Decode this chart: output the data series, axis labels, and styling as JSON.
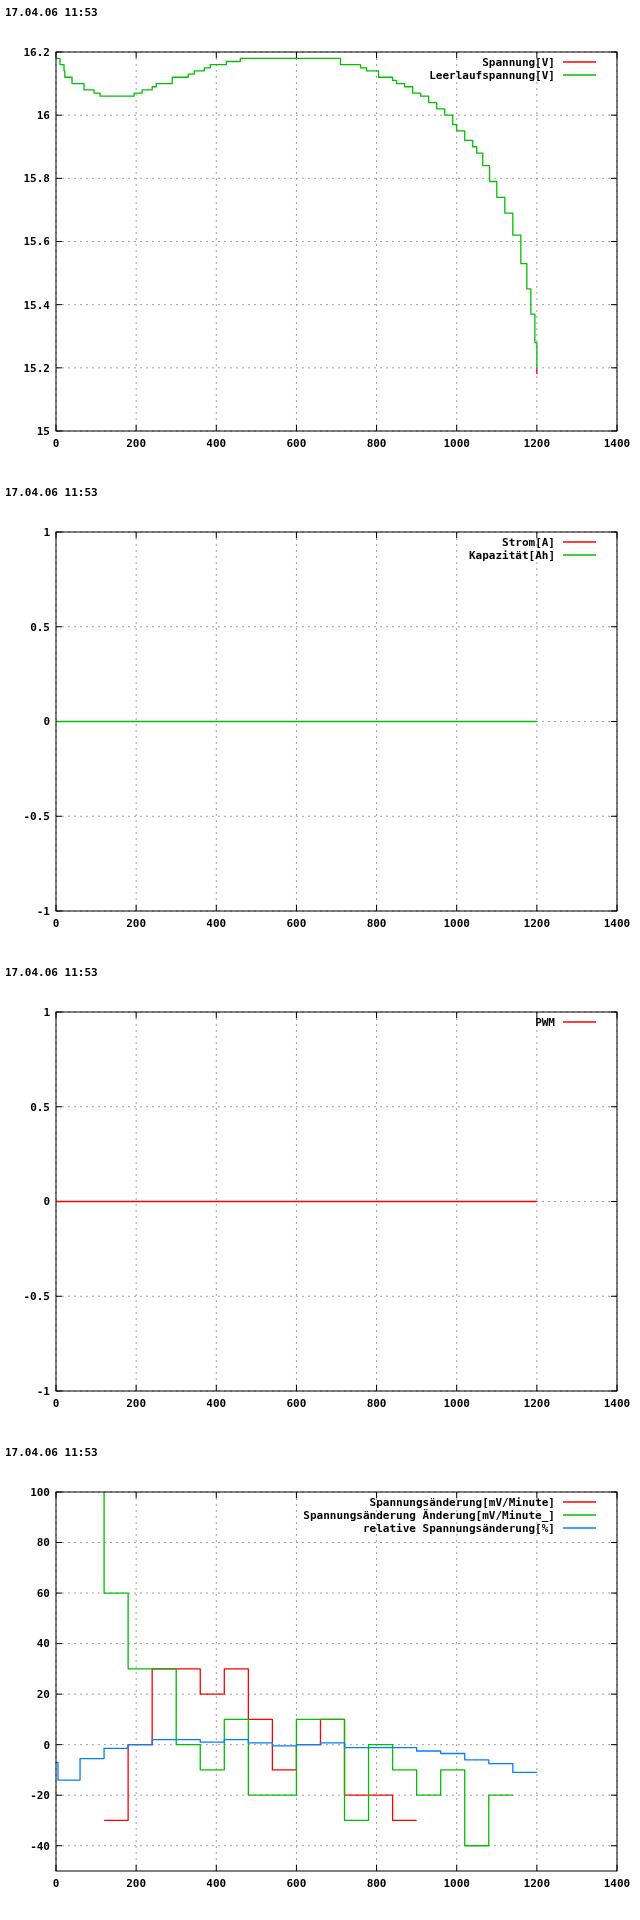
{
  "chart_data": [
    {
      "type": "step",
      "title": "17.04.06 11:53",
      "xlim": [
        0,
        1400
      ],
      "xticks": [
        0,
        200,
        400,
        600,
        800,
        1000,
        1200,
        1400
      ],
      "ylim": [
        15,
        16.2
      ],
      "yticks": [
        15,
        {
          "value": 15.2,
          "label": "15.2"
        },
        {
          "value": 15.4,
          "label": "15.4"
        },
        {
          "value": 15.6,
          "label": "15.6"
        },
        {
          "value": 15.8,
          "label": "15.8"
        },
        16,
        {
          "value": 16.2,
          "label": "16.2"
        }
      ],
      "grid": true,
      "legend": "top right",
      "series": [
        {
          "name": "Spannung[V]",
          "color": "#ff0000",
          "x": [
            1200,
            1200
          ],
          "values": [
            15.2,
            15.18
          ]
        },
        {
          "name": "Leerlaufspannung[V]",
          "color": "#00c000",
          "x": [
            0,
            10,
            20,
            22,
            40,
            70,
            95,
            110,
            195,
            215,
            240,
            250,
            290,
            330,
            345,
            370,
            385,
            425,
            460,
            710,
            760,
            775,
            805,
            840,
            850,
            870,
            890,
            910,
            930,
            950,
            970,
            990,
            1000,
            1020,
            1040,
            1050,
            1065,
            1082,
            1100,
            1120,
            1140,
            1160,
            1175,
            1185,
            1195,
            1200
          ],
          "values": [
            16.18,
            16.16,
            16.14,
            16.12,
            16.1,
            16.08,
            16.07,
            16.06,
            16.07,
            16.08,
            16.09,
            16.1,
            16.12,
            16.13,
            16.14,
            16.15,
            16.16,
            16.17,
            16.18,
            16.16,
            16.15,
            16.14,
            16.12,
            16.11,
            16.1,
            16.09,
            16.07,
            16.06,
            16.04,
            16.02,
            16,
            15.97,
            15.95,
            15.92,
            15.9,
            15.88,
            15.84,
            15.79,
            15.74,
            15.69,
            15.62,
            15.53,
            15.45,
            15.37,
            15.28,
            15.2
          ]
        }
      ]
    },
    {
      "type": "line",
      "title": "17.04.06 11:53",
      "xlim": [
        0,
        1400
      ],
      "xticks": [
        0,
        200,
        400,
        600,
        800,
        1000,
        1200,
        1400
      ],
      "ylim": [
        -1,
        1
      ],
      "yticks": [
        -1,
        {
          "value": -0.5,
          "label": "-0.5"
        },
        0,
        {
          "value": 0.5,
          "label": "0.5"
        },
        1
      ],
      "grid": true,
      "legend": "top right",
      "series": [
        {
          "name": "Strom[A]",
          "color": "#ff0000"
        },
        {
          "name": "Kapazität[Ah]",
          "color": "#00c000",
          "x": [
            0,
            1200
          ],
          "values": [
            0,
            0
          ]
        }
      ]
    },
    {
      "type": "line",
      "title": "17.04.06 11:53",
      "xlim": [
        0,
        1400
      ],
      "xticks": [
        0,
        200,
        400,
        600,
        800,
        1000,
        1200,
        1400
      ],
      "ylim": [
        -1,
        1
      ],
      "yticks": [
        -1,
        {
          "value": -0.5,
          "label": "-0.5"
        },
        0,
        {
          "value": 0.5,
          "label": "0.5"
        },
        1
      ],
      "grid": true,
      "legend": "top right",
      "series": [
        {
          "name": "PWM",
          "color": "#ff0000",
          "x": [
            0,
            1200
          ],
          "values": [
            0,
            0
          ]
        }
      ]
    },
    {
      "type": "step",
      "title": "17.04.06 11:53",
      "xlim": [
        0,
        1400
      ],
      "xticks": [
        0,
        200,
        400,
        600,
        800,
        1000,
        1200,
        1400
      ],
      "ylim": [
        -50,
        100
      ],
      "yticks": [
        -40,
        -20,
        0,
        20,
        40,
        60,
        80,
        100
      ],
      "grid": true,
      "legend": "top right",
      "series": [
        {
          "name": "Spannungsänderung[mV/Minute]",
          "color": "#ff0000",
          "x": [
            120,
            180,
            240,
            360,
            420,
            480,
            540,
            600,
            660,
            720,
            840,
            900
          ],
          "values": [
            -30,
            0,
            30,
            20,
            30,
            10,
            -10,
            0,
            10,
            -20,
            -30,
            -30
          ]
        },
        {
          "name": "Spannungsänderung Änderung[mV/Minute_]",
          "color": "#00c000",
          "x": [
            120,
            120,
            180,
            300,
            360,
            420,
            480,
            600,
            720,
            780,
            840,
            900,
            960,
            1020,
            1080,
            1140
          ],
          "values": [
            100,
            60,
            30,
            0,
            -10,
            10,
            -20,
            10,
            -30,
            0,
            -10,
            -20,
            -10,
            -40,
            -20,
            -20
          ]
        },
        {
          "name": "relative Spannungsänderung[%]",
          "color": "#0080ff",
          "x": [
            0,
            5,
            60,
            120,
            180,
            240,
            360,
            420,
            480,
            540,
            600,
            660,
            720,
            900,
            960,
            1020,
            1080,
            1140,
            1200
          ],
          "values": [
            -7,
            -14,
            -5.5,
            -1.5,
            0,
            2,
            1,
            2,
            0.7,
            -0.5,
            0,
            0.7,
            -1.2,
            -2.5,
            -3.5,
            -6,
            -7.5,
            -11,
            -11
          ]
        }
      ]
    }
  ]
}
